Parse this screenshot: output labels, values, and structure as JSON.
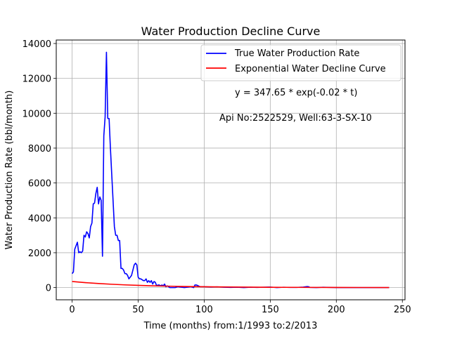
{
  "chart_data": {
    "type": "line",
    "title": "Water Production Decline Curve",
    "xlabel": "Time (months) from:1/1993 to:2/2013",
    "ylabel": "Water Production Rate (bbl/month)",
    "xlim": [
      -12,
      252
    ],
    "ylim": [
      -700,
      14200
    ],
    "xticks": [
      0,
      50,
      100,
      150,
      200,
      250
    ],
    "yticks": [
      0,
      2000,
      4000,
      6000,
      8000,
      10000,
      12000,
      14000
    ],
    "grid": true,
    "legend_position": "top-right",
    "annotations": [
      "y = 347.65 * exp(-0.02 * t)",
      "Api No:2522529, Well:63-3-SX-10"
    ],
    "series": [
      {
        "name": "True Water Production Rate",
        "color": "#0000ff",
        "x": [
          0,
          1,
          2,
          3,
          4,
          5,
          6,
          7,
          8,
          9,
          10,
          11,
          12,
          13,
          14,
          15,
          16,
          17,
          18,
          19,
          20,
          21,
          22,
          23,
          24,
          25,
          26,
          27,
          28,
          29,
          30,
          31,
          32,
          33,
          34,
          35,
          36,
          37,
          38,
          39,
          40,
          41,
          42,
          43,
          44,
          45,
          46,
          47,
          48,
          49,
          50,
          51,
          52,
          53,
          54,
          55,
          56,
          57,
          58,
          59,
          60,
          61,
          62,
          63,
          64,
          65,
          66,
          67,
          68,
          69,
          70,
          71,
          72,
          73,
          74,
          75,
          78,
          80,
          85,
          90,
          92,
          93,
          94,
          95,
          96,
          97,
          100,
          105,
          110,
          115,
          120,
          125,
          130,
          135,
          140,
          145,
          150,
          155,
          160,
          165,
          170,
          175,
          177,
          178,
          179,
          180,
          185,
          190,
          195,
          200,
          205,
          210,
          215,
          220,
          225,
          230,
          235,
          240
        ],
        "values": [
          800,
          900,
          2200,
          2400,
          2600,
          2000,
          2050,
          2000,
          2100,
          3000,
          2900,
          3200,
          3100,
          2850,
          3500,
          3700,
          4800,
          4850,
          5400,
          5750,
          4800,
          5200,
          5000,
          1800,
          8700,
          9800,
          13500,
          9700,
          9700,
          8000,
          6500,
          5000,
          3500,
          3000,
          3000,
          2700,
          2700,
          1100,
          1100,
          1000,
          800,
          800,
          700,
          500,
          600,
          700,
          1000,
          1300,
          1400,
          1300,
          600,
          500,
          500,
          450,
          400,
          400,
          500,
          300,
          400,
          300,
          400,
          200,
          350,
          300,
          100,
          150,
          150,
          100,
          150,
          100,
          200,
          50,
          100,
          50,
          0,
          0,
          0,
          50,
          0,
          50,
          0,
          150,
          150,
          120,
          80,
          50,
          50,
          30,
          40,
          20,
          10,
          20,
          0,
          20,
          10,
          20,
          30,
          0,
          20,
          10,
          10,
          30,
          50,
          60,
          50,
          10,
          0,
          20,
          10,
          0,
          0,
          0,
          0,
          0,
          0,
          0,
          0,
          0
        ]
      },
      {
        "name": "Exponential Water Decline Curve",
        "color": "#ff0000",
        "x": [
          0,
          10,
          20,
          30,
          40,
          50,
          60,
          70,
          80,
          90,
          100,
          120,
          140,
          160,
          180,
          200,
          220,
          240
        ],
        "values": [
          347.65,
          284.6,
          233.0,
          190.8,
          156.2,
          127.9,
          104.7,
          85.7,
          70.2,
          57.4,
          47.0,
          31.5,
          21.1,
          14.2,
          9.5,
          6.4,
          4.3,
          2.9
        ]
      }
    ]
  }
}
